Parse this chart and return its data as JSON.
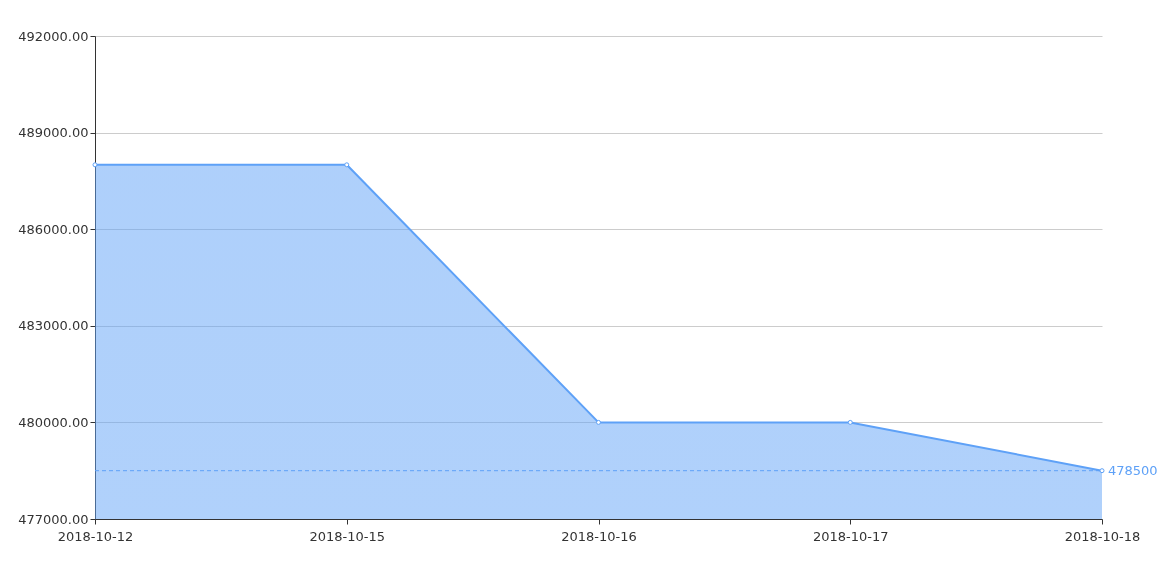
{
  "chart_data": {
    "type": "area",
    "categories": [
      "2018-10-12",
      "2018-10-15",
      "2018-10-16",
      "2018-10-17",
      "2018-10-18"
    ],
    "series": [
      {
        "color": "#5ea1f7",
        "values": [
          488000,
          488000,
          480000,
          480000,
          478500
        ]
      }
    ],
    "ylim": [
      477000,
      492000
    ],
    "yticks": [
      {
        "value": 477000,
        "label": "477000.00"
      },
      {
        "value": 480000,
        "label": "480000.00"
      },
      {
        "value": 483000,
        "label": "483000.00"
      },
      {
        "value": 486000,
        "label": "486000.00"
      },
      {
        "value": 489000,
        "label": "489000.00"
      },
      {
        "value": 492000,
        "label": "492000.00"
      }
    ],
    "grid": "y",
    "marker": "circle",
    "line_style": "solid",
    "ref_lines": [
      {
        "axis": "y",
        "value": 478500,
        "label": "478500",
        "color": "#5ea1f7",
        "line_style": "dashed"
      }
    ]
  }
}
